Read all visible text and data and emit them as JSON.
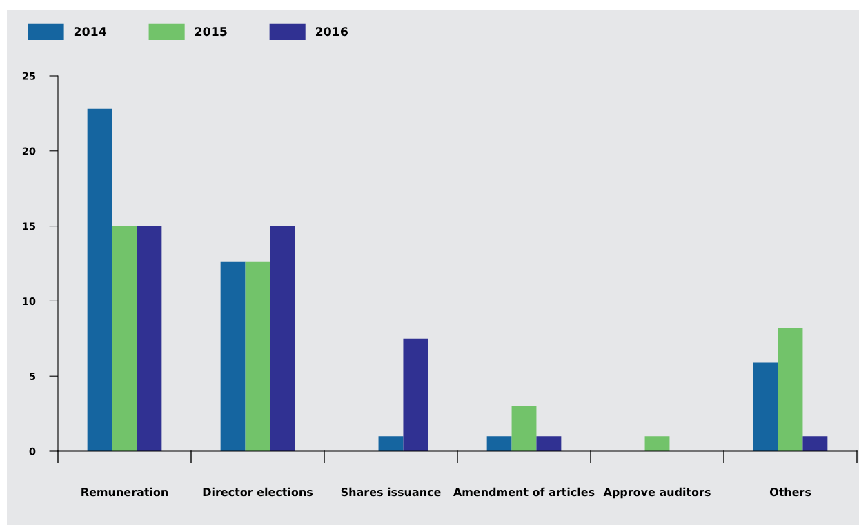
{
  "chart_data": {
    "type": "bar",
    "categories": [
      "Remuneration",
      "Director elections",
      "Shares issuance",
      "Amendment of articles",
      "Approve auditors",
      "Others"
    ],
    "series": [
      {
        "name": "2014",
        "color": "#1565a0",
        "values": [
          22.8,
          12.6,
          0,
          1,
          0,
          5.9
        ]
      },
      {
        "name": "2015",
        "color": "#72c36a",
        "colors": [
          "#72c36a",
          "#72c36a",
          "#1565a0",
          "#72c36a",
          "#72c36a",
          "#72c36a"
        ],
        "values": [
          15,
          12.6,
          1,
          3,
          1,
          8.2
        ]
      },
      {
        "name": "2016",
        "color": "#303192",
        "values": [
          15,
          15,
          7.5,
          1,
          0,
          1
        ]
      }
    ],
    "ylim": [
      0,
      25
    ],
    "yticks": [
      0,
      5,
      10,
      15,
      20,
      25
    ],
    "grid": false,
    "legend": "top left"
  }
}
